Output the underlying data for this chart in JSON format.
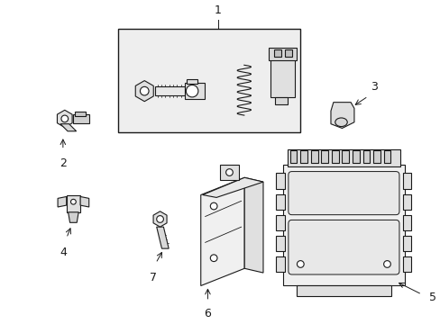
{
  "background_color": "#ffffff",
  "line_color": "#1a1a1a",
  "fill_light": "#f0f0f0",
  "fill_box": "#e8e8e8",
  "fig_width": 4.89,
  "fig_height": 3.6,
  "dpi": 100
}
